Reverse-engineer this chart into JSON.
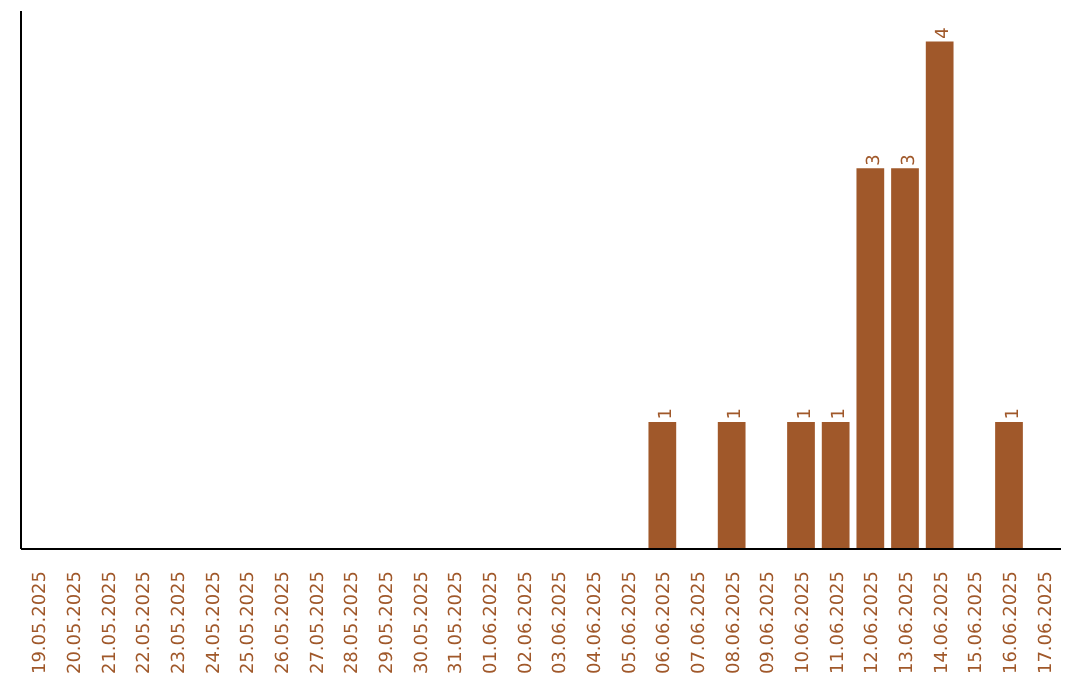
{
  "chart_data": {
    "type": "bar",
    "categories": [
      "19.05.2025",
      "20.05.2025",
      "21.05.2025",
      "22.05.2025",
      "23.05.2025",
      "24.05.2025",
      "25.05.2025",
      "26.05.2025",
      "27.05.2025",
      "28.05.2025",
      "29.05.2025",
      "30.05.2025",
      "31.05.2025",
      "01.06.2025",
      "02.06.2025",
      "03.06.2025",
      "04.06.2025",
      "05.06.2025",
      "06.06.2025",
      "07.06.2025",
      "08.06.2025",
      "09.06.2025",
      "10.06.2025",
      "11.06.2025",
      "12.06.2025",
      "13.06.2025",
      "14.06.2025",
      "15.06.2025",
      "16.06.2025",
      "17.06.2025"
    ],
    "values": [
      null,
      null,
      null,
      null,
      null,
      null,
      null,
      null,
      null,
      null,
      null,
      null,
      null,
      null,
      null,
      null,
      null,
      null,
      1,
      null,
      1,
      null,
      1,
      1,
      3,
      3,
      4,
      null,
      1,
      null
    ],
    "data_labels": true,
    "color": "#a0582a"
  }
}
